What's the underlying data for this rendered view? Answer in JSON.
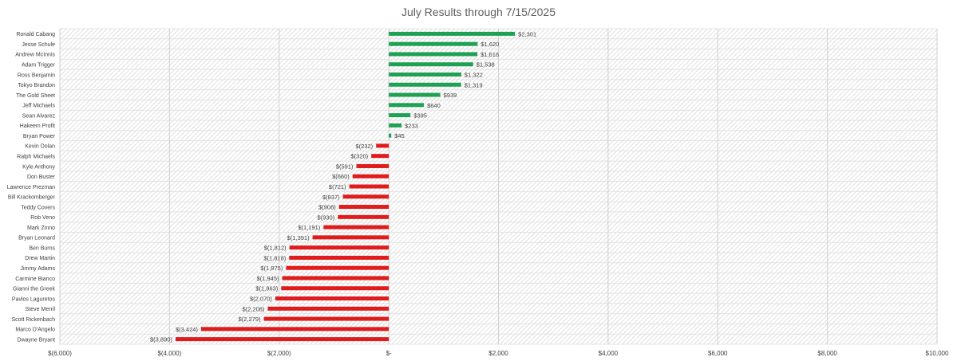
{
  "chart_data": {
    "type": "bar",
    "orientation": "horizontal",
    "title": "July Results through 7/15/2025",
    "xlabel": "",
    "ylabel": "",
    "xlim": [
      -6000,
      10000
    ],
    "x_ticks": [
      -6000,
      -4000,
      -2000,
      0,
      2000,
      4000,
      6000,
      8000,
      10000
    ],
    "x_tick_labels": [
      "$(6,000)",
      "$(4,000)",
      "$(2,000)",
      "$-",
      "$2,000",
      "$4,000",
      "$6,000",
      "$8,000",
      "$10,000"
    ],
    "grid": true,
    "legend": "none",
    "colors": {
      "positive": "#1ea152",
      "negative": "#e01b1b",
      "grid": "#d0d0d0",
      "text": "#404040",
      "band": "#f2f2f2"
    },
    "categories": [
      "Ronald Cabang",
      "Jesse Schule",
      "Andrew McInnis",
      "Adam Trigger",
      "Ross Benjamin",
      "Tokyo Brandon",
      "The Gold Sheet",
      "Jeff Michaels",
      "Sean Alvarez",
      "Hakeem Profit",
      "Bryan Power",
      "Kevin Dolan",
      "Ralph Michaels",
      "Kyle Anthony",
      "Don Buster",
      "Lawrence Prezman",
      "Bill Krackomberger",
      "Teddy Covers",
      "Rob Veno",
      "Mark Zinno",
      "Bryan Leonard",
      "Ben Burns",
      "Drew Martin",
      "Jimmy Adams",
      "Carmine Bianco",
      "Gianni the Greek",
      "Pavlos Laguretos",
      "Steve Merril",
      "Scott Rickenbach",
      "Marco D'Angelo",
      "Dwayne Bryant"
    ],
    "values": [
      2301,
      1620,
      1616,
      1538,
      1322,
      1319,
      939,
      640,
      395,
      233,
      45,
      -232,
      -320,
      -591,
      -660,
      -721,
      -837,
      -908,
      -930,
      -1191,
      -1391,
      -1812,
      -1818,
      -1875,
      -1945,
      -1963,
      -2070,
      -2208,
      -2279,
      -3424,
      -3890
    ],
    "data_labels": [
      "$2,301",
      "$1,620",
      "$1,616",
      "$1,538",
      "$1,322",
      "$1,319",
      "$939",
      "$640",
      "$395",
      "$233",
      "$45",
      "$(232)",
      "$(320)",
      "$(591)",
      "$(660)",
      "$(721)",
      "$(837)",
      "$(908)",
      "$(930)",
      "$(1,191)",
      "$(1,391)",
      "$(1,812)",
      "$(1,818)",
      "$(1,875)",
      "$(1,945)",
      "$(1,963)",
      "$(2,070)",
      "$(2,208)",
      "$(2,279)",
      "$(3,424)",
      "$(3,890)"
    ]
  }
}
